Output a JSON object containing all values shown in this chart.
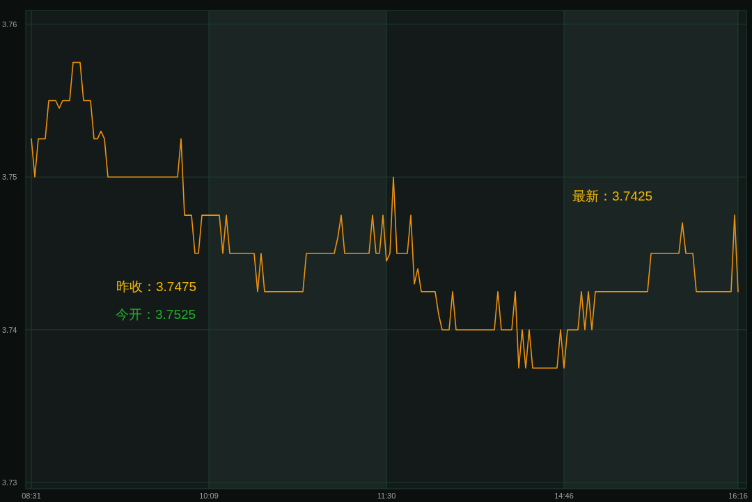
{
  "chart_data": {
    "type": "line",
    "categories": [
      "08:31",
      null,
      null,
      null,
      null,
      null,
      null,
      null,
      null,
      null,
      null,
      null,
      null,
      null,
      null,
      null,
      null,
      null,
      null,
      null,
      null,
      null,
      null,
      null,
      null,
      null,
      null,
      null,
      null,
      null,
      null,
      null,
      null,
      null,
      null,
      null,
      null,
      null,
      null,
      null,
      null,
      null,
      null,
      null,
      null,
      null,
      null,
      null,
      null,
      null,
      null,
      "10:09",
      null,
      null,
      null,
      null,
      null,
      null,
      null,
      null,
      null,
      null,
      null,
      null,
      null,
      null,
      null,
      null,
      null,
      null,
      null,
      null,
      null,
      null,
      null,
      null,
      null,
      null,
      null,
      null,
      null,
      null,
      null,
      null,
      null,
      null,
      null,
      null,
      null,
      null,
      null,
      null,
      null,
      null,
      null,
      null,
      null,
      null,
      null,
      null,
      null,
      null,
      "11:30",
      null,
      null,
      null,
      null,
      null,
      null,
      null,
      null,
      null,
      null,
      null,
      null,
      null,
      null,
      null,
      null,
      null,
      null,
      null,
      null,
      null,
      null,
      null,
      null,
      null,
      null,
      null,
      null,
      null,
      null,
      null,
      null,
      null,
      null,
      null,
      null,
      null,
      null,
      null,
      null,
      null,
      null,
      null,
      null,
      null,
      null,
      null,
      null,
      null,
      null,
      "14:46",
      null,
      null,
      null,
      null,
      null,
      null,
      null,
      null,
      null,
      null,
      null,
      null,
      null,
      null,
      null,
      null,
      null,
      null,
      null,
      null,
      null,
      null,
      null,
      null,
      null,
      null,
      null,
      null,
      null,
      null,
      null,
      null,
      null,
      null,
      null,
      null,
      null,
      null,
      null,
      null,
      null,
      null,
      null,
      null,
      null,
      null,
      null,
      null,
      null,
      "16:16"
    ],
    "series": [
      {
        "color": "#f0920e",
        "values": [
          3.7525,
          3.75,
          3.7525,
          3.7525,
          3.7525,
          3.755,
          3.755,
          3.755,
          3.7545,
          3.755,
          3.755,
          3.755,
          3.7575,
          3.7575,
          3.7575,
          3.755,
          3.755,
          3.755,
          3.7525,
          3.7525,
          3.753,
          3.7525,
          3.75,
          3.75,
          3.75,
          3.75,
          3.75,
          3.75,
          3.75,
          3.75,
          3.75,
          3.75,
          3.75,
          3.75,
          3.75,
          3.75,
          3.75,
          3.75,
          3.75,
          3.75,
          3.75,
          3.75,
          3.75,
          3.7525,
          3.7475,
          3.7475,
          3.7475,
          3.745,
          3.745,
          3.7475,
          3.7475,
          3.7475,
          3.7475,
          3.7475,
          3.7475,
          3.745,
          3.7475,
          3.745,
          3.745,
          3.745,
          3.745,
          3.745,
          3.745,
          3.745,
          3.745,
          3.7425,
          3.745,
          3.7425,
          3.7425,
          3.7425,
          3.7425,
          3.7425,
          3.7425,
          3.7425,
          3.7425,
          3.7425,
          3.7425,
          3.7425,
          3.7425,
          3.745,
          3.745,
          3.745,
          3.745,
          3.745,
          3.745,
          3.745,
          3.745,
          3.745,
          3.746,
          3.7475,
          3.745,
          3.745,
          3.745,
          3.745,
          3.745,
          3.745,
          3.745,
          3.745,
          3.7475,
          3.745,
          3.745,
          3.7475,
          3.7445,
          3.745,
          3.75,
          3.745,
          3.745,
          3.745,
          3.745,
          3.7475,
          3.743,
          3.744,
          3.7425,
          3.7425,
          3.7425,
          3.7425,
          3.7425,
          3.741,
          3.74,
          3.74,
          3.74,
          3.7425,
          3.74,
          3.74,
          3.74,
          3.74,
          3.74,
          3.74,
          3.74,
          3.74,
          3.74,
          3.74,
          3.74,
          3.74,
          3.7425,
          3.74,
          3.74,
          3.74,
          3.74,
          3.7425,
          3.7375,
          3.74,
          3.7375,
          3.74,
          3.7375,
          3.7375,
          3.7375,
          3.7375,
          3.7375,
          3.7375,
          3.7375,
          3.7375,
          3.74,
          3.7375,
          3.74,
          3.74,
          3.74,
          3.74,
          3.7425,
          3.74,
          3.7425,
          3.74,
          3.7425,
          3.7425,
          3.7425,
          3.7425,
          3.7425,
          3.7425,
          3.7425,
          3.7425,
          3.7425,
          3.7425,
          3.7425,
          3.7425,
          3.7425,
          3.7425,
          3.7425,
          3.7425,
          3.745,
          3.745,
          3.745,
          3.745,
          3.745,
          3.745,
          3.745,
          3.745,
          3.745,
          3.747,
          3.745,
          3.745,
          3.745,
          3.7425,
          3.7425,
          3.7425,
          3.7425,
          3.7425,
          3.7425,
          3.7425,
          3.7425,
          3.7425,
          3.7425,
          3.7425,
          3.7475,
          3.7425
        ]
      }
    ],
    "ylim": [
      3.7296,
      3.7609
    ],
    "yticks": [
      3.73,
      3.74,
      3.75,
      3.76
    ],
    "grid": true,
    "bands": [
      {
        "axis": "x",
        "from": "10:09",
        "to": "11:30",
        "color": "#1b2523"
      },
      {
        "axis": "x",
        "from": "14:46",
        "to": "16:16",
        "color": "#1b2523"
      }
    ],
    "annotations": [
      "昨收：3.7475",
      "今开：3.7525",
      "最新：3.7425"
    ]
  }
}
